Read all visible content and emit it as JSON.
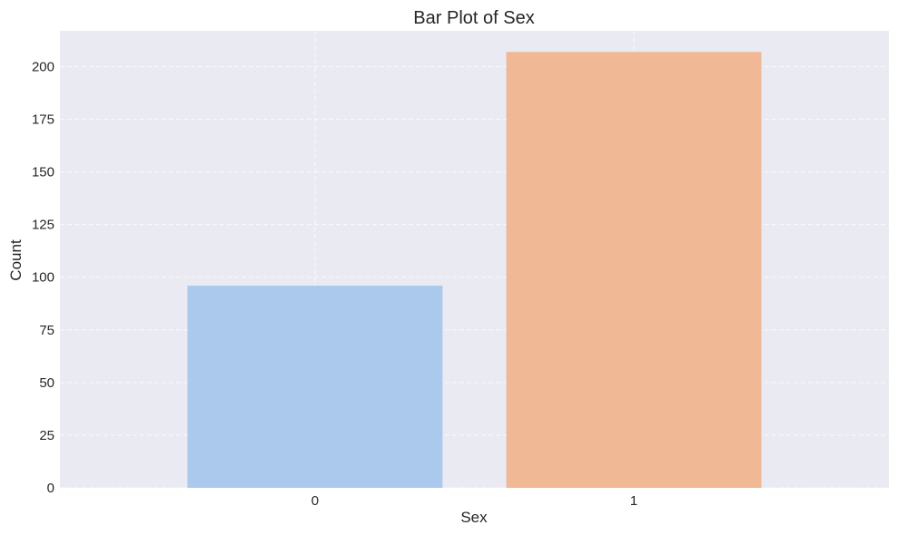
{
  "chart_data": {
    "type": "bar",
    "title": "Bar Plot of Sex",
    "xlabel": "Sex",
    "ylabel": "Count",
    "categories": [
      "0",
      "1"
    ],
    "values": [
      96,
      207
    ],
    "ylim": [
      0,
      217
    ],
    "yticks": [
      0,
      25,
      50,
      75,
      100,
      125,
      150,
      175,
      200
    ],
    "grid": true,
    "colors": {
      "plot_background": "#EAEAF2",
      "bars": [
        "#ABC9EC",
        "#F0B894"
      ]
    }
  }
}
